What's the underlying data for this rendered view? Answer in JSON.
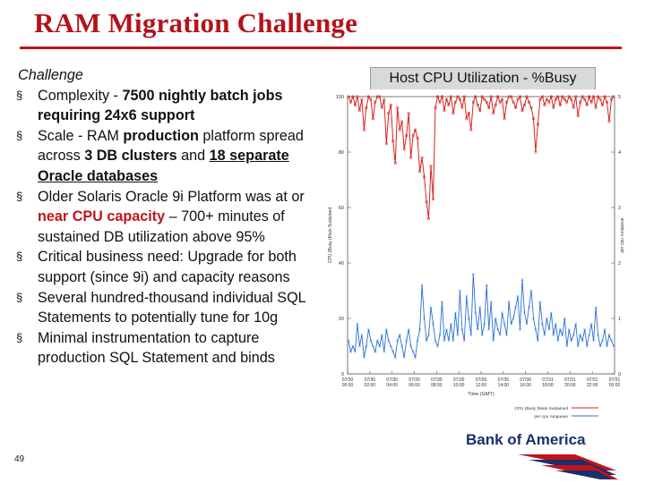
{
  "title": "RAM Migration Challenge",
  "challenge_heading": "Challenge",
  "bullets": [
    {
      "parts": [
        {
          "t": "Complexity - "
        },
        {
          "t": "7500 nightly batch jobs requiring 24x6 support",
          "b": true
        }
      ]
    },
    {
      "parts": [
        {
          "t": "Scale - RAM "
        },
        {
          "t": "production",
          "b": true
        },
        {
          "t": " platform spread across "
        },
        {
          "t": "3 DB clusters",
          "b": true
        },
        {
          "t": " and "
        },
        {
          "t": "18 separate Oracle databases",
          "b": true,
          "u": true
        }
      ]
    },
    {
      "parts": [
        {
          "t": "Older Solaris Oracle 9i Platform was at or "
        },
        {
          "t": "near CPU capacity",
          "red": true
        },
        {
          "t": " – 700+ minutes of sustained DB utilization above 95%"
        }
      ]
    },
    {
      "parts": [
        {
          "t": "Critical business need: Upgrade for both support (since 9i) and capacity reasons"
        }
      ]
    },
    {
      "parts": [
        {
          "t": "Several  hundred-thousand individual SQL Statements to potentially tune for 10g"
        }
      ]
    },
    {
      "parts": [
        {
          "t": "Minimal instrumentation to capture production SQL Statement and binds"
        }
      ]
    }
  ],
  "page_number": "49",
  "cpu_title": "Host CPU Utilization - %Busy",
  "logo_text": "Bank of America",
  "colors": {
    "accent": "#c0151c",
    "cpu_busy": "#d9231f",
    "per_cpu": "#2b6fd6"
  },
  "chart_data": {
    "type": "line",
    "title": "Host CPU Utilization - %Busy",
    "xlabel": "Time (GMT)",
    "ylabel_left": "CPU (Busy (Main Sustained",
    "ylabel_right": "per cpu runqueue",
    "ylim_left": [
      0,
      100
    ],
    "ylim_right": [
      0,
      5
    ],
    "yticks_left": [
      "0",
      "20",
      "40",
      "60",
      "80",
      "100"
    ],
    "yticks_right": [
      "0",
      "1",
      "2",
      "3",
      "4",
      "5"
    ],
    "x_ticks": [
      "07/30 00:00",
      "07/30 02:00",
      "07/30 04:00",
      "07/30 06:00",
      "07/30 08:00",
      "07/30 10:00",
      "07/30 12:00",
      "07/30 14:00",
      "07/30 16:00",
      "07/31 18:00",
      "07/31 20:00",
      "07/31 22:00",
      "07/31 00:00"
    ],
    "legend": [
      "CPU (Busy (Main Sustained",
      "per cpu runqueue"
    ],
    "series": [
      {
        "name": "CPU (Busy (Main Sustained",
        "axis": "left",
        "values": [
          100,
          98,
          100,
          97,
          100,
          95,
          99,
          88,
          96,
          100,
          99,
          92,
          98,
          100,
          100,
          96,
          99,
          83,
          94,
          97,
          84,
          76,
          96,
          88,
          91,
          81,
          86,
          94,
          78,
          86,
          88,
          85,
          73,
          78,
          71,
          62,
          56,
          75,
          63,
          96,
          100,
          98,
          100,
          95,
          99,
          97,
          100,
          94,
          98,
          100,
          99,
          96,
          100,
          92,
          94,
          88,
          98,
          100,
          97,
          95,
          100,
          99,
          98,
          96,
          100,
          94,
          97,
          100,
          98,
          99,
          92,
          98,
          100,
          100,
          98,
          96,
          99,
          100,
          95,
          97,
          100,
          98,
          96,
          92,
          80,
          90,
          99,
          100,
          97,
          99,
          98,
          100,
          96,
          99,
          100,
          97,
          100,
          99,
          98,
          100,
          99,
          96,
          100,
          93,
          98,
          100,
          99,
          97,
          100,
          98,
          100,
          96,
          100,
          99,
          97,
          100,
          98,
          91,
          99,
          100
        ]
      },
      {
        "name": "per cpu runqueue",
        "axis": "right",
        "values": [
          0.6,
          0.4,
          0.5,
          0.4,
          0.9,
          0.5,
          0.7,
          0.3,
          0.5,
          0.8,
          0.6,
          0.5,
          0.4,
          0.6,
          0.5,
          0.7,
          0.4,
          0.8,
          0.6,
          0.5,
          0.4,
          0.3,
          0.6,
          0.7,
          0.5,
          0.3,
          0.6,
          0.8,
          0.5,
          0.4,
          0.3,
          0.6,
          0.8,
          1.6,
          1.0,
          0.6,
          0.7,
          1.2,
          0.9,
          0.6,
          0.5,
          0.7,
          1.3,
          0.6,
          0.8,
          0.6,
          0.9,
          0.6,
          1.1,
          0.7,
          1.5,
          0.8,
          0.6,
          1.4,
          1.0,
          0.7,
          1.8,
          1.1,
          0.8,
          1.2,
          0.7,
          0.9,
          1.6,
          0.8,
          1.3,
          0.6,
          1.0,
          0.8,
          0.7,
          1.1,
          0.9,
          0.7,
          1.3,
          0.9,
          1.0,
          1.2,
          1.4,
          0.8,
          1.7,
          1.1,
          0.9,
          1.2,
          1.5,
          1.0,
          0.8,
          0.6,
          1.3,
          0.9,
          0.7,
          1.0,
          0.8,
          1.1,
          0.7,
          0.9,
          0.6,
          0.8,
          0.7,
          1.0,
          0.5,
          0.8,
          0.6,
          0.7,
          0.9,
          0.5,
          0.7,
          0.6,
          0.8,
          0.5,
          0.7,
          0.9,
          0.6,
          1.2,
          0.7,
          0.5,
          0.6,
          0.8,
          0.5,
          0.7,
          0.6,
          0.5
        ]
      }
    ]
  }
}
